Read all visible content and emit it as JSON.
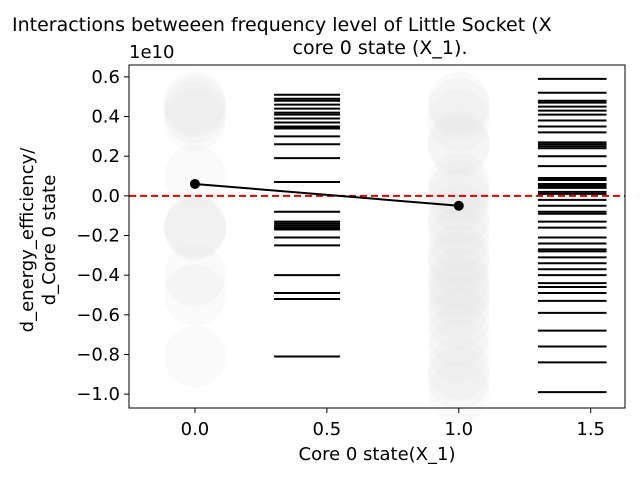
{
  "chart_data": {
    "type": "scatter",
    "title_lines": [
      "Interactions betweeen frequency level of Little Socket (X",
      "core 0 state (X_1)."
    ],
    "xlabel": "Core 0 state(X_1)",
    "ylabel_lines": [
      "d_energy_efficiency/",
      "d_Core 0 state"
    ],
    "y_offset_label": "1e10",
    "xlim": [
      -0.25,
      1.63
    ],
    "ylim": [
      -1.07,
      0.66
    ],
    "x_ticks": [
      0.0,
      0.5,
      1.0,
      1.5
    ],
    "x_tick_labels": [
      "0.0",
      "0.5",
      "1.0",
      "1.5"
    ],
    "y_ticks": [
      0.6,
      0.4,
      0.2,
      0.0,
      -0.2,
      -0.4,
      -0.6,
      -0.8,
      -1.0
    ],
    "y_tick_labels": [
      "0.6",
      "0.4",
      "0.2",
      "0.0",
      "−0.2",
      "−0.4",
      "−0.6",
      "−0.8",
      "−1.0"
    ],
    "reference_line": {
      "y": 0.0,
      "color": "#e00000",
      "style": "dashed"
    },
    "colors": {
      "bubble": "#e3e3e3",
      "rug": "#000000",
      "trend": "#000000",
      "axes": "#000000"
    },
    "bubbles": [
      {
        "x": 0.0,
        "values": [
          0.47,
          0.45,
          0.42,
          0.38,
          0.1,
          -0.15,
          -0.16,
          -0.17,
          -0.4,
          -0.5,
          -0.81
        ]
      },
      {
        "x": 1.0,
        "values": [
          0.47,
          0.44,
          0.38,
          0.27,
          0.25,
          0.06,
          0.02,
          -0.02,
          -0.1,
          -0.15,
          -0.22,
          -0.3,
          -0.34,
          -0.42,
          -0.46,
          -0.5,
          -0.56,
          -0.62,
          -0.7,
          -0.78,
          -0.87,
          -0.92,
          -0.99
        ]
      }
    ],
    "rug_series": [
      {
        "x_start": 0.3,
        "x_end": 0.55,
        "values": [
          0.51,
          0.49,
          0.48,
          0.46,
          0.44,
          0.42,
          0.41,
          0.39,
          0.37,
          0.35,
          0.34,
          0.3,
          0.26,
          0.19,
          0.07,
          -0.08,
          -0.13,
          -0.14,
          -0.15,
          -0.16,
          -0.17,
          -0.21,
          -0.25,
          -0.4,
          -0.49,
          -0.52,
          -0.81
        ]
      },
      {
        "x_start": 1.3,
        "x_end": 1.56,
        "values": [
          0.59,
          0.52,
          0.48,
          0.47,
          0.45,
          0.43,
          0.41,
          0.38,
          0.35,
          0.32,
          0.27,
          0.26,
          0.25,
          0.24,
          0.2,
          0.15,
          0.09,
          0.08,
          0.06,
          0.05,
          0.04,
          0.02,
          0.01,
          -0.02,
          -0.05,
          -0.08,
          -0.09,
          -0.13,
          -0.16,
          -0.21,
          -0.24,
          -0.27,
          -0.28,
          -0.31,
          -0.34,
          -0.37,
          -0.4,
          -0.44,
          -0.46,
          -0.49,
          -0.53,
          -0.59,
          -0.68,
          -0.76,
          -0.84,
          -0.99
        ]
      }
    ],
    "trend": {
      "x": [
        0.0,
        1.0
      ],
      "y": [
        0.06,
        -0.05
      ]
    }
  }
}
